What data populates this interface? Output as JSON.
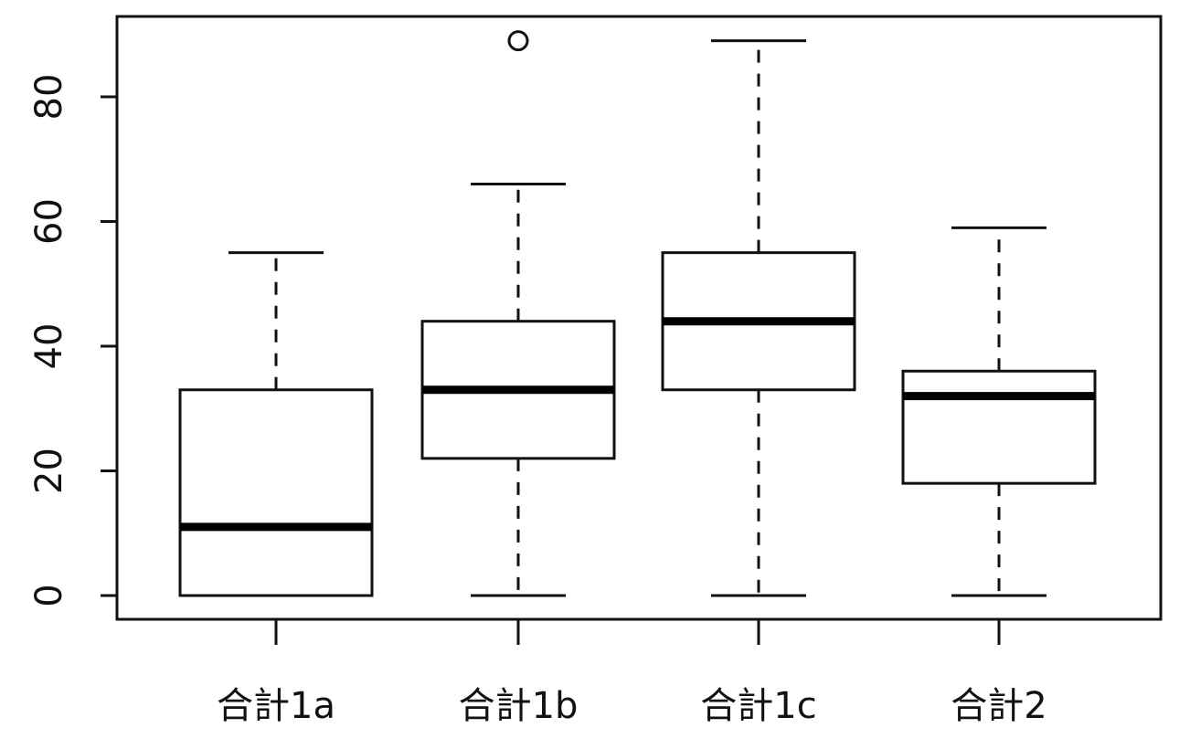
{
  "chart_data": {
    "type": "boxplot",
    "title": "",
    "xlabel": "",
    "ylabel": "",
    "ylim": [
      0,
      90
    ],
    "yticks": [
      0,
      20,
      40,
      60,
      80
    ],
    "yticklabels": [
      "0",
      "20",
      "40",
      "60",
      "80"
    ],
    "categories": [
      "合計1a",
      "合計1b",
      "合計1c",
      "合計2"
    ],
    "boxes": [
      {
        "name": "合計1a",
        "min": 0,
        "q1": 0,
        "median": 11,
        "q3": 33,
        "max": 55,
        "outliers": []
      },
      {
        "name": "合計1b",
        "min": 0,
        "q1": 22,
        "median": 33,
        "q3": 44,
        "max": 66,
        "outliers": [
          89
        ]
      },
      {
        "name": "合計1c",
        "min": 0,
        "q1": 33,
        "median": 44,
        "q3": 55,
        "max": 89,
        "outliers": []
      },
      {
        "name": "合計2",
        "min": 0,
        "q1": 18,
        "median": 32,
        "q3": 36,
        "max": 59,
        "outliers": []
      }
    ],
    "grid": false
  }
}
